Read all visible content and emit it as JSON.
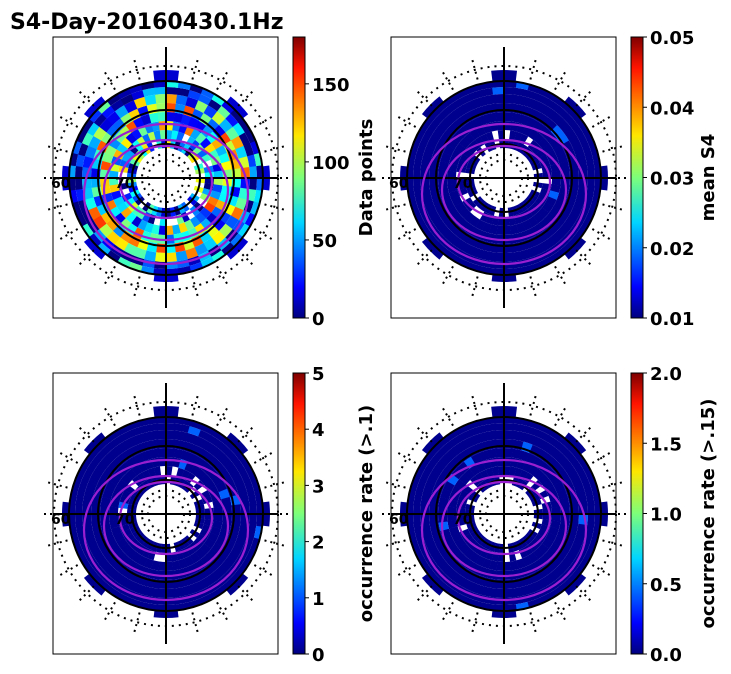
{
  "title": "S4-Day-20160430.1Hz",
  "chart_data": [
    {
      "type": "heatmap",
      "projection": "polar",
      "panel": "top-left",
      "colorbar": {
        "label": "Data points",
        "range": [
          0,
          180
        ],
        "ticks": [
          "0",
          "50",
          "100",
          "150"
        ],
        "tick_values": [
          0,
          50,
          100,
          150
        ],
        "colormap": "jet"
      },
      "lat_labels": [
        "60",
        "70"
      ],
      "fill": "mixed",
      "grid": true
    },
    {
      "type": "heatmap",
      "projection": "polar",
      "panel": "top-right",
      "colorbar": {
        "label": "mean S4",
        "range": [
          0.01,
          0.05
        ],
        "ticks": [
          "0.01",
          "0.02",
          "0.03",
          "0.04",
          "0.05"
        ],
        "tick_values": [
          0.01,
          0.02,
          0.03,
          0.04,
          0.05
        ],
        "colormap": "jet"
      },
      "lat_labels": [
        "60",
        "70"
      ],
      "fill": "low",
      "grid": true
    },
    {
      "type": "heatmap",
      "projection": "polar",
      "panel": "bottom-left",
      "colorbar": {
        "label": "occurrence rate (>.1)",
        "range": [
          0,
          5
        ],
        "ticks": [
          "0",
          "1",
          "2",
          "3",
          "4",
          "5"
        ],
        "tick_values": [
          0,
          1,
          2,
          3,
          4,
          5
        ],
        "colormap": "jet"
      },
      "lat_labels": [
        "60",
        "70"
      ],
      "fill": "low",
      "grid": true
    },
    {
      "type": "heatmap",
      "projection": "polar",
      "panel": "bottom-right",
      "colorbar": {
        "label": "occurrence rate (>.15)",
        "range": [
          0.0,
          2.0
        ],
        "ticks": [
          "0.0",
          "0.5",
          "1.0",
          "1.5",
          "2.0"
        ],
        "tick_values": [
          0.0,
          0.5,
          1.0,
          1.5,
          2.0
        ],
        "colormap": "jet"
      },
      "lat_labels": [
        "60",
        "70"
      ],
      "fill": "low",
      "grid": true
    }
  ],
  "colors": {
    "oval": "#9a1fd0",
    "axes": "#000000",
    "low": "#00008f"
  }
}
